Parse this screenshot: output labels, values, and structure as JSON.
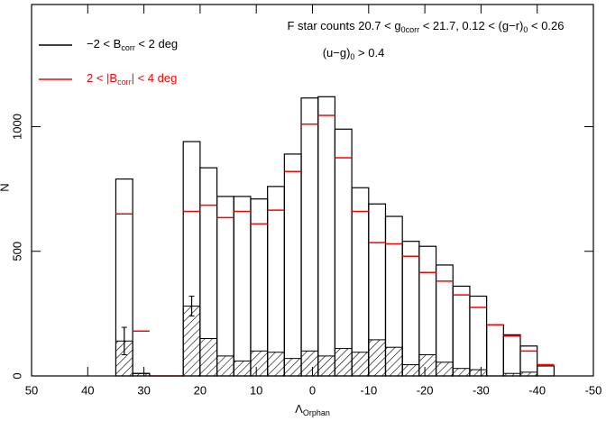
{
  "chart_data": {
    "type": "histogram",
    "title_lines": [
      [
        "F star counts 20.7 < g",
        "0corr",
        " < 21.7, 0.12 < (g−r)",
        "0",
        " < 0.26"
      ],
      [
        "(u−g)",
        "0",
        " > 0.4"
      ]
    ],
    "xlabel": [
      "Λ",
      "Orphan"
    ],
    "ylabel": "N",
    "xlim": [
      50,
      -50
    ],
    "ylim": [
      0,
      1490
    ],
    "xticks": [
      50,
      40,
      30,
      20,
      10,
      0,
      -10,
      -20,
      -30,
      -40,
      -50
    ],
    "yticks": [
      0,
      500,
      1000
    ],
    "legend": "upper left",
    "bins": [
      35,
      32,
      29,
      26,
      23,
      20,
      17,
      14,
      11,
      8,
      5,
      2,
      -1,
      -4,
      -7,
      -10,
      -13,
      -16,
      -19,
      -22,
      -25,
      -28,
      -31,
      -34,
      -37,
      -40,
      -43
    ],
    "series": [
      {
        "name": [
          "−2 < B",
          "corr",
          " < 2 deg"
        ],
        "color": "#000000",
        "style": "outline",
        "values": [
          790,
          10,
          0,
          0,
          940,
          835,
          720,
          720,
          710,
          760,
          890,
          1115,
          1120,
          990,
          755,
          690,
          640,
          540,
          520,
          445,
          360,
          320,
          205,
          165,
          120,
          40
        ]
      },
      {
        "name": [
          "2 < |B",
          "corr",
          "| < 4 deg"
        ],
        "color": "#ff0000",
        "style": "top",
        "values": [
          650,
          180,
          0,
          0,
          660,
          685,
          635,
          660,
          610,
          665,
          820,
          1010,
          1045,
          875,
          660,
          535,
          530,
          480,
          415,
          380,
          325,
          275,
          205,
          160,
          100,
          45
        ]
      },
      {
        "color": "#000000",
        "style": "hatched",
        "values": [
          140,
          10,
          0,
          0,
          280,
          150,
          80,
          60,
          100,
          95,
          70,
          100,
          80,
          110,
          95,
          145,
          115,
          45,
          85,
          55,
          30,
          25,
          0,
          10,
          15,
          0
        ],
        "errors": [
          55,
          null,
          null,
          null,
          40,
          null,
          null,
          null,
          null,
          null,
          null,
          null,
          null,
          null,
          null,
          null,
          null,
          null,
          null,
          null,
          null,
          null,
          null,
          null,
          null,
          null
        ]
      }
    ]
  }
}
